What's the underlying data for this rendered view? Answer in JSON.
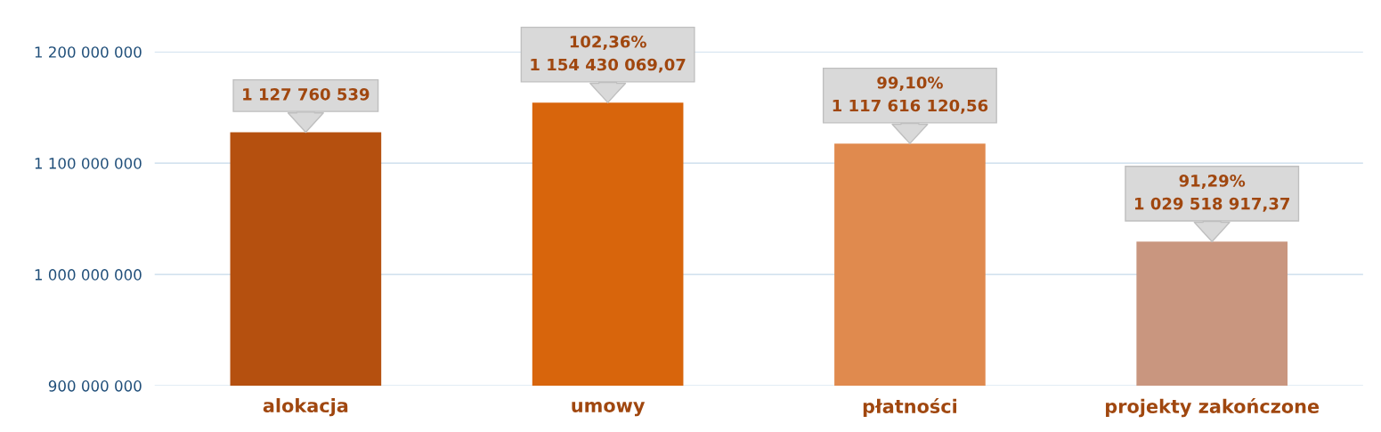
{
  "chart_data": {
    "type": "bar",
    "categories": [
      "alokacja",
      "umowy",
      "płatności",
      "projekty zakończone"
    ],
    "values": [
      1127760539,
      1154430069.07,
      1117616120.56,
      1029518917.37
    ],
    "colors": [
      "#b5500f",
      "#d8650c",
      "#e08a4e",
      "#c9967f"
    ],
    "value_labels": [
      "1 127 760 539",
      "102,36%\n1 154 430 069,07",
      "99,10%\n1 117 616 120,56",
      "91,29%\n1 029 518 917,37"
    ],
    "ylim": [
      900000000,
      1200000000
    ],
    "yticks": [
      {
        "value": 900000000,
        "label": "900 000 000"
      },
      {
        "value": 1000000000,
        "label": "1 000 000 000"
      },
      {
        "value": 1100000000,
        "label": "1 100 000 000"
      },
      {
        "value": 1200000000,
        "label": "1 200 000 000"
      }
    ],
    "grid": "y"
  }
}
